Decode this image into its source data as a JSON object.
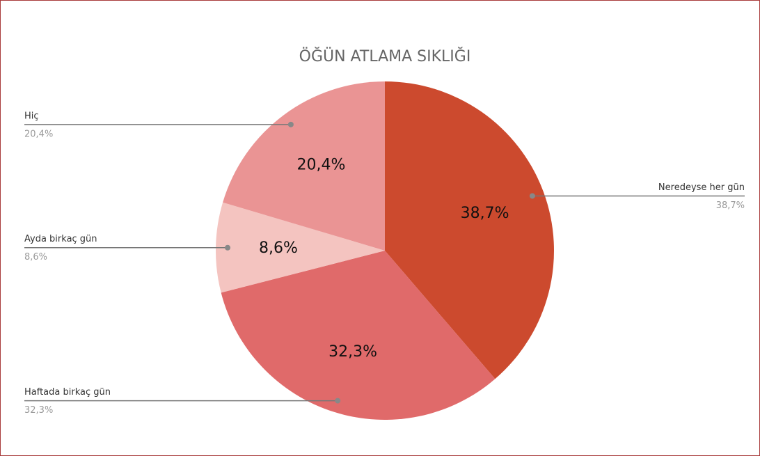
{
  "chart_data": {
    "type": "pie",
    "title": "ÖĞÜN ATLAMA SIKLIĞI",
    "categories": [
      "Neredeyse her gün",
      "Haftada birkaç gün",
      "Ayda birkaç gün",
      "Hiç"
    ],
    "values": [
      38.7,
      32.3,
      8.6,
      20.4
    ],
    "value_labels": [
      "38,7%",
      "32,3%",
      "8,6%",
      "20,4%"
    ],
    "colors": [
      "#cc4a2e",
      "#e06a6a",
      "#f4c4c0",
      "#ea9494"
    ]
  }
}
